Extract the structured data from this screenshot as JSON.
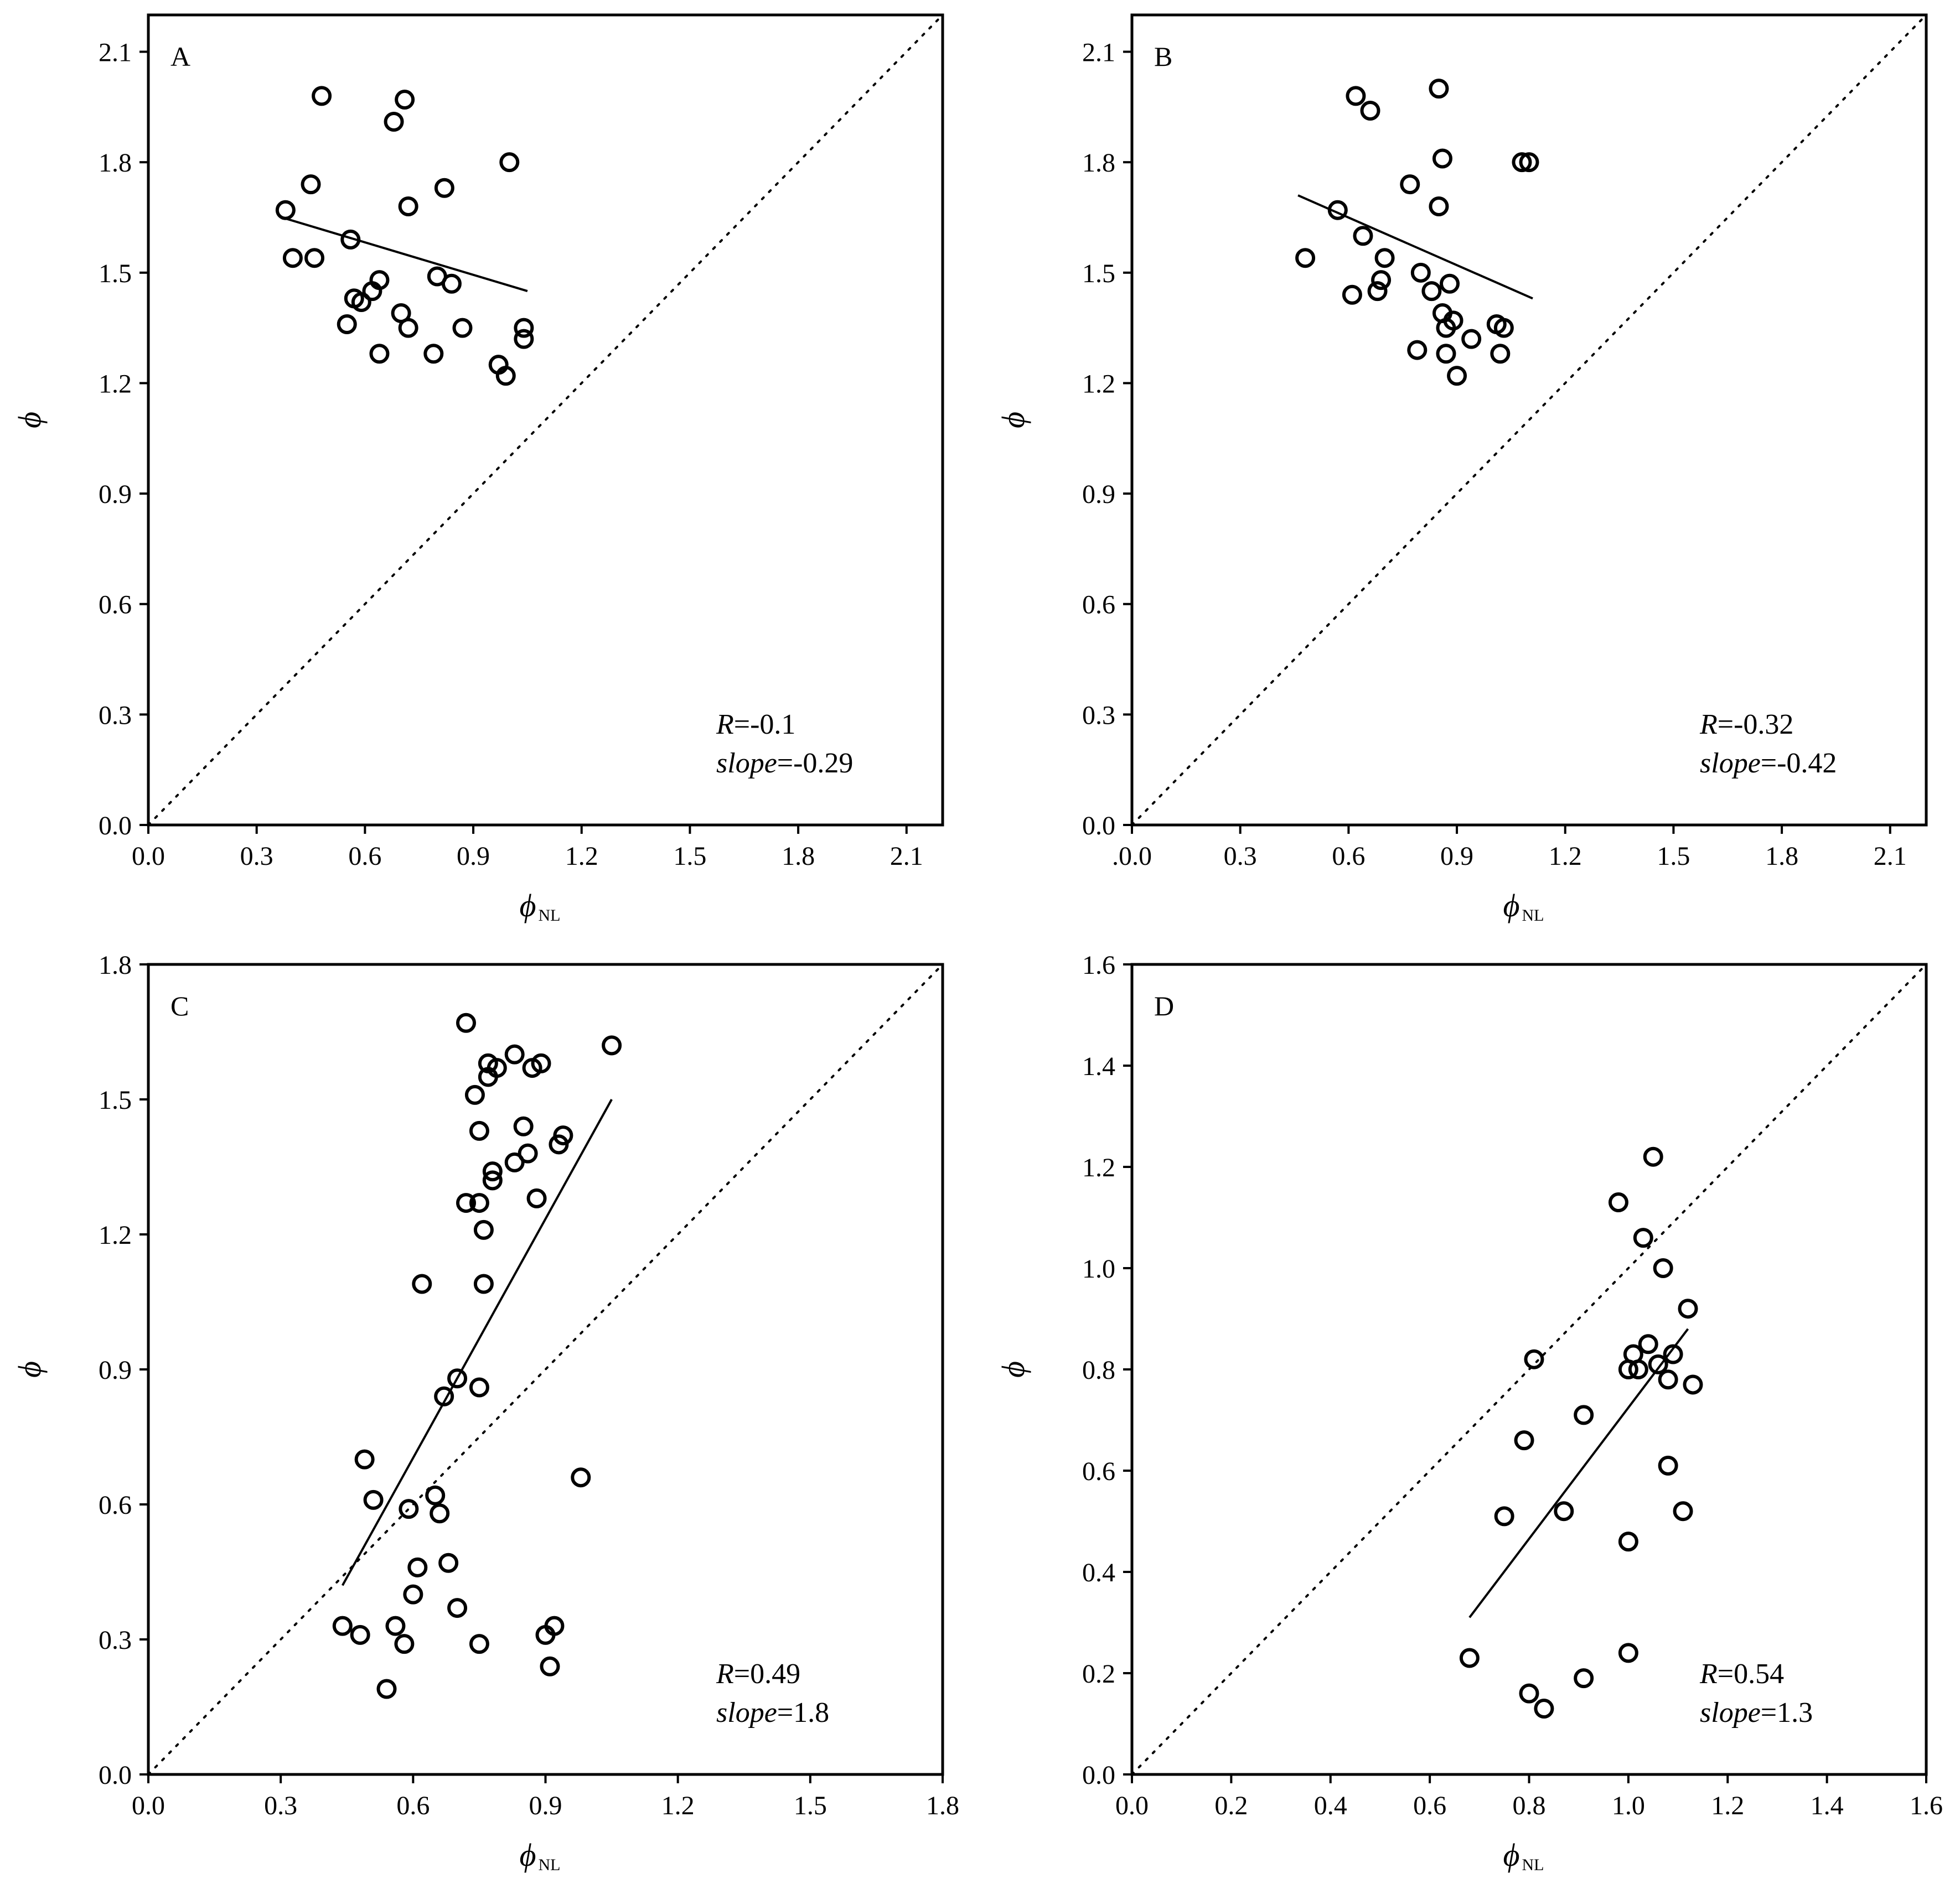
{
  "figure": {
    "panels": [
      {
        "letter": "A",
        "xlabel": "ϕ",
        "xlabel_sub": "NL",
        "ylabel": "ϕ",
        "r_label": "R",
        "r_value": "=-0.1",
        "slope_label": "slope",
        "slope_value": "=-0.29"
      },
      {
        "letter": "B",
        "xlabel": "ϕ",
        "xlabel_sub": "NL",
        "ylabel": "ϕ",
        "r_label": "R",
        "r_value": "=-0.32",
        "slope_label": "slope",
        "slope_value": "=-0.42"
      },
      {
        "letter": "C",
        "xlabel": "ϕ",
        "xlabel_sub": "NL",
        "ylabel": "ϕ",
        "r_label": "R",
        "r_value": "=0.49",
        "slope_label": "slope",
        "slope_value": "=1.8"
      },
      {
        "letter": "D",
        "xlabel": "ϕ",
        "xlabel_sub": "NL",
        "ylabel": "ϕ",
        "r_label": "R",
        "r_value": "=0.54",
        "slope_label": "slope",
        "slope_value": "=1.3"
      }
    ]
  },
  "chart_data": [
    {
      "type": "scatter",
      "panel": "A",
      "xlabel": "ϕNL",
      "ylabel": "ϕ",
      "xlim": [
        0,
        2.2
      ],
      "ylim": [
        0,
        2.2
      ],
      "xticks": [
        "0.0",
        "0.3",
        "0.6",
        "0.9",
        "1.2",
        "1.5",
        "1.8",
        "2.1"
      ],
      "yticks": [
        "0.0",
        "0.3",
        "0.6",
        "0.9",
        "1.2",
        "1.5",
        "1.8",
        "2.1"
      ],
      "x": [
        0.38,
        0.4,
        0.45,
        0.46,
        0.48,
        0.55,
        0.56,
        0.57,
        0.59,
        0.62,
        0.64,
        0.64,
        0.68,
        0.7,
        0.71,
        0.72,
        0.72,
        0.79,
        0.8,
        0.82,
        0.84,
        0.87,
        0.97,
        0.99,
        1.0,
        1.04,
        1.04
      ],
      "y": [
        1.67,
        1.54,
        1.74,
        1.54,
        1.98,
        1.36,
        1.59,
        1.43,
        1.42,
        1.45,
        1.28,
        1.48,
        1.91,
        1.39,
        1.97,
        1.35,
        1.68,
        1.28,
        1.49,
        1.73,
        1.47,
        1.35,
        1.25,
        1.22,
        1.8,
        1.35,
        1.32
      ],
      "fit_line": {
        "x": [
          0.37,
          1.05
        ],
        "y": [
          1.65,
          1.45
        ]
      },
      "identity_line": true,
      "R": -0.1,
      "slope": -0.29
    },
    {
      "type": "scatter",
      "panel": "B",
      "xlabel": "ϕNL",
      "ylabel": "ϕ",
      "xlim": [
        0,
        2.2
      ],
      "ylim": [
        0,
        2.2
      ],
      "xticks": [
        ".0.0",
        "0.3",
        "0.6",
        "0.9",
        "1.2",
        "1.5",
        "1.8",
        "2.1"
      ],
      "yticks": [
        "0.0",
        "0.3",
        "0.6",
        "0.9",
        "1.2",
        "1.5",
        "1.8",
        "2.1"
      ],
      "x": [
        0.48,
        0.57,
        0.61,
        0.62,
        0.64,
        0.66,
        0.68,
        0.69,
        0.7,
        0.77,
        0.79,
        0.8,
        0.83,
        0.85,
        0.85,
        0.86,
        0.86,
        0.87,
        0.87,
        0.88,
        0.89,
        0.9,
        0.94,
        1.01,
        1.02,
        1.03,
        1.08,
        1.1
      ],
      "y": [
        1.54,
        1.67,
        1.44,
        1.98,
        1.6,
        1.94,
        1.45,
        1.48,
        1.54,
        1.74,
        1.29,
        1.5,
        1.45,
        2.0,
        1.68,
        1.39,
        1.81,
        1.35,
        1.28,
        1.47,
        1.37,
        1.22,
        1.32,
        1.36,
        1.28,
        1.35,
        1.8,
        1.8
      ],
      "fit_line": {
        "x": [
          0.46,
          1.11
        ],
        "y": [
          1.71,
          1.43
        ]
      },
      "identity_line": true,
      "R": -0.32,
      "slope": -0.42
    },
    {
      "type": "scatter",
      "panel": "C",
      "xlabel": "ϕNL",
      "ylabel": "ϕ",
      "xlim": [
        0,
        1.8
      ],
      "ylim": [
        0,
        1.8
      ],
      "xticks": [
        "0.0",
        "0.3",
        "0.6",
        "0.9",
        "1.2",
        "1.5",
        "1.8"
      ],
      "yticks": [
        "0.0",
        "0.3",
        "0.6",
        "0.9",
        "1.2",
        "1.5",
        "1.8"
      ],
      "x": [
        0.44,
        0.48,
        0.49,
        0.51,
        0.54,
        0.56,
        0.58,
        0.59,
        0.6,
        0.61,
        0.62,
        0.65,
        0.66,
        0.67,
        0.68,
        0.7,
        0.7,
        0.72,
        0.72,
        0.74,
        0.75,
        0.75,
        0.75,
        0.75,
        0.76,
        0.76,
        0.77,
        0.77,
        0.78,
        0.78,
        0.79,
        0.83,
        0.83,
        0.85,
        0.86,
        0.87,
        0.88,
        0.89,
        0.9,
        0.91,
        0.92,
        0.93,
        0.94,
        0.98,
        1.05
      ],
      "y": [
        0.33,
        0.31,
        0.7,
        0.61,
        0.19,
        0.33,
        0.29,
        0.59,
        0.4,
        0.46,
        1.09,
        0.62,
        0.58,
        0.84,
        0.47,
        0.88,
        0.37,
        1.27,
        1.67,
        1.51,
        1.43,
        1.27,
        0.86,
        0.29,
        1.21,
        1.09,
        1.58,
        1.55,
        1.34,
        1.32,
        1.57,
        1.6,
        1.36,
        1.44,
        1.38,
        1.57,
        1.28,
        1.58,
        0.31,
        0.24,
        0.33,
        1.4,
        1.42,
        0.66,
        1.62
      ],
      "fit_line": {
        "x": [
          0.44,
          1.05
        ],
        "y": [
          0.42,
          1.5
        ]
      },
      "identity_line": true,
      "R": 0.49,
      "slope": 1.8
    },
    {
      "type": "scatter",
      "panel": "D",
      "xlabel": "ϕNL",
      "ylabel": "ϕ",
      "xlim": [
        0,
        1.6
      ],
      "ylim": [
        0,
        1.6
      ],
      "xticks": [
        "0.0",
        "0.2",
        "0.4",
        "0.6",
        "0.8",
        "1.0",
        "1.2",
        "1.4",
        "1.6"
      ],
      "yticks": [
        "0.0",
        "0.2",
        "0.4",
        "0.6",
        "0.8",
        "1.0",
        "1.2",
        "1.4",
        "1.6"
      ],
      "x": [
        0.68,
        0.75,
        0.79,
        0.8,
        0.81,
        0.83,
        0.87,
        0.91,
        0.91,
        0.98,
        1.0,
        1.0,
        1.0,
        1.01,
        1.02,
        1.03,
        1.04,
        1.05,
        1.06,
        1.07,
        1.08,
        1.08,
        1.09,
        1.11,
        1.12,
        1.13
      ],
      "y": [
        0.23,
        0.51,
        0.66,
        0.16,
        0.82,
        0.13,
        0.52,
        0.71,
        0.19,
        1.13,
        0.46,
        0.8,
        0.24,
        0.83,
        0.8,
        1.06,
        0.85,
        1.22,
        0.81,
        1.0,
        0.78,
        0.61,
        0.83,
        0.52,
        0.92,
        0.77
      ],
      "fit_line": {
        "x": [
          0.68,
          1.12
        ],
        "y": [
          0.31,
          0.88
        ]
      },
      "identity_line": true,
      "R": 0.54,
      "slope": 1.3
    }
  ]
}
